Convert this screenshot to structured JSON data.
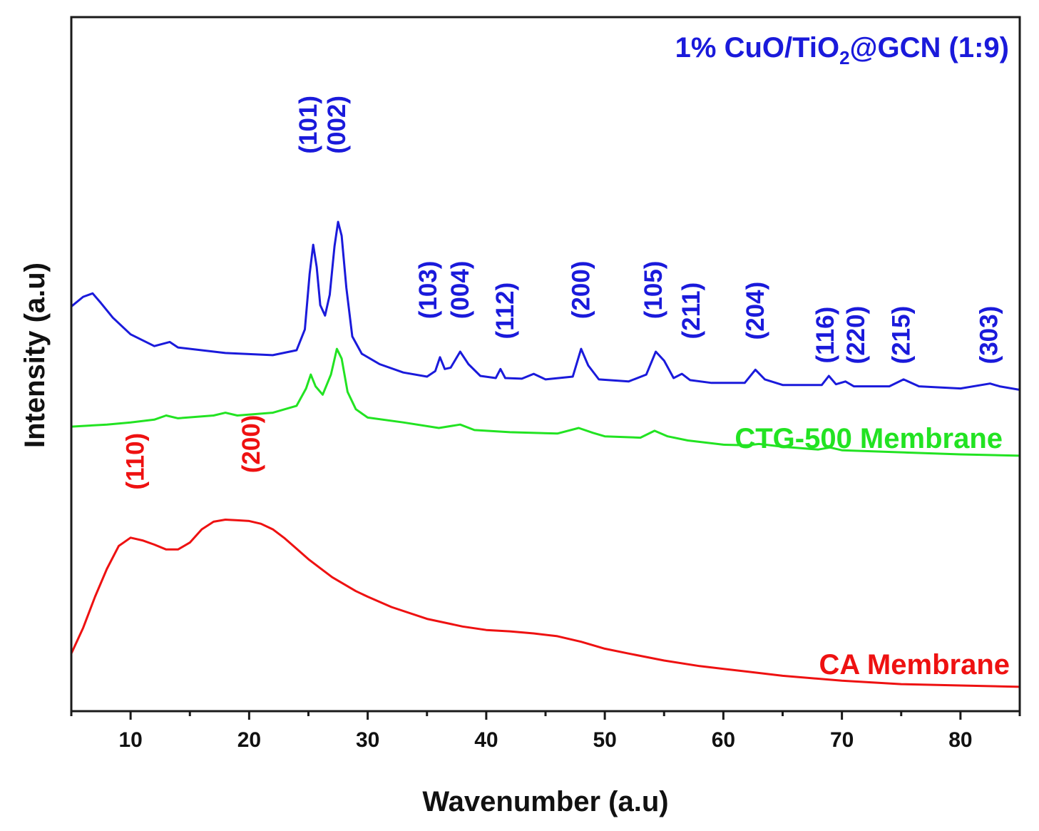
{
  "chart_data": {
    "type": "line",
    "title": "",
    "xlabel": "Wavenumber (a.u)",
    "ylabel": "Intensity (a.u)",
    "xlim": [
      5,
      85
    ],
    "ylim": [
      0,
      100
    ],
    "x_ticks": [
      10,
      20,
      30,
      40,
      50,
      60,
      70,
      80
    ],
    "y_ticks_shown": false,
    "grid": false,
    "series": [
      {
        "name": "1% CuO/TiO2@GCN (1:9)",
        "label_main": "1% CuO/TiO",
        "label_sub": "2",
        "label_tail": "@GCN (1:9)",
        "color": "#1a1adb",
        "points": [
          [
            5,
            58.3
          ],
          [
            6,
            59.7
          ],
          [
            6.8,
            60.2
          ],
          [
            7.5,
            58.8
          ],
          [
            8.5,
            56.7
          ],
          [
            10,
            54.3
          ],
          [
            12,
            52.6
          ],
          [
            13.3,
            53.2
          ],
          [
            14,
            52.4
          ],
          [
            18,
            51.6
          ],
          [
            22,
            51.3
          ],
          [
            24,
            52.0
          ],
          [
            24.7,
            55.0
          ],
          [
            25.1,
            63.0
          ],
          [
            25.4,
            67.2
          ],
          [
            25.7,
            64.0
          ],
          [
            26,
            58.5
          ],
          [
            26.4,
            57.0
          ],
          [
            26.8,
            60.0
          ],
          [
            27.2,
            67.0
          ],
          [
            27.5,
            70.5
          ],
          [
            27.8,
            68.5
          ],
          [
            28.2,
            61.0
          ],
          [
            28.7,
            54.0
          ],
          [
            29.5,
            51.5
          ],
          [
            31,
            50.0
          ],
          [
            33,
            48.8
          ],
          [
            35,
            48.2
          ],
          [
            35.7,
            49.0
          ],
          [
            36.1,
            51.0
          ],
          [
            36.5,
            49.3
          ],
          [
            37,
            49.5
          ],
          [
            37.8,
            51.8
          ],
          [
            38.5,
            50.0
          ],
          [
            39.5,
            48.3
          ],
          [
            40.8,
            48.0
          ],
          [
            41.2,
            49.3
          ],
          [
            41.6,
            48.0
          ],
          [
            43,
            47.9
          ],
          [
            44,
            48.6
          ],
          [
            45,
            47.8
          ],
          [
            47.3,
            48.2
          ],
          [
            48,
            52.2
          ],
          [
            48.6,
            49.8
          ],
          [
            49.5,
            47.8
          ],
          [
            52,
            47.5
          ],
          [
            53.5,
            48.5
          ],
          [
            54.3,
            51.8
          ],
          [
            55,
            50.5
          ],
          [
            55.8,
            48.0
          ],
          [
            56.5,
            48.6
          ],
          [
            57.2,
            47.7
          ],
          [
            59,
            47.3
          ],
          [
            61.8,
            47.3
          ],
          [
            62.7,
            49.2
          ],
          [
            63.5,
            47.8
          ],
          [
            65,
            47.0
          ],
          [
            68.3,
            47.0
          ],
          [
            68.9,
            48.3
          ],
          [
            69.5,
            47.1
          ],
          [
            70.3,
            47.5
          ],
          [
            71,
            46.8
          ],
          [
            74,
            46.8
          ],
          [
            75.2,
            47.8
          ],
          [
            76.5,
            46.8
          ],
          [
            80,
            46.5
          ],
          [
            82.5,
            47.2
          ],
          [
            83.3,
            46.8
          ],
          [
            85,
            46.3
          ]
        ]
      },
      {
        "name": "CTG-500 Membrane",
        "color": "#22e322",
        "points": [
          [
            5,
            41.0
          ],
          [
            8,
            41.3
          ],
          [
            10,
            41.6
          ],
          [
            12,
            42.0
          ],
          [
            13,
            42.6
          ],
          [
            14,
            42.2
          ],
          [
            17,
            42.6
          ],
          [
            18,
            43.0
          ],
          [
            19,
            42.6
          ],
          [
            22,
            43.0
          ],
          [
            24,
            44.0
          ],
          [
            24.8,
            46.5
          ],
          [
            25.2,
            48.5
          ],
          [
            25.6,
            46.8
          ],
          [
            26.2,
            45.6
          ],
          [
            26.9,
            48.5
          ],
          [
            27.4,
            52.2
          ],
          [
            27.8,
            50.8
          ],
          [
            28.3,
            46.0
          ],
          [
            29,
            43.5
          ],
          [
            30,
            42.3
          ],
          [
            33,
            41.6
          ],
          [
            36,
            40.8
          ],
          [
            37.8,
            41.3
          ],
          [
            39,
            40.5
          ],
          [
            42,
            40.2
          ],
          [
            46,
            40.0
          ],
          [
            47.8,
            40.8
          ],
          [
            49,
            40.1
          ],
          [
            50,
            39.6
          ],
          [
            53,
            39.4
          ],
          [
            54.2,
            40.4
          ],
          [
            55.3,
            39.6
          ],
          [
            57,
            39.0
          ],
          [
            60,
            38.4
          ],
          [
            62,
            38.3
          ],
          [
            63,
            38.5
          ],
          [
            65,
            38.1
          ],
          [
            68,
            37.7
          ],
          [
            69,
            38.0
          ],
          [
            70,
            37.6
          ],
          [
            75,
            37.3
          ],
          [
            80,
            37.0
          ],
          [
            85,
            36.8
          ]
        ]
      },
      {
        "name": "CA Membrane",
        "color": "#ee1111",
        "points": [
          [
            5,
            8.3
          ],
          [
            6,
            12.0
          ],
          [
            7,
            16.5
          ],
          [
            8,
            20.5
          ],
          [
            9,
            23.8
          ],
          [
            10,
            25.0
          ],
          [
            11,
            24.6
          ],
          [
            12,
            24.0
          ],
          [
            13,
            23.3
          ],
          [
            14,
            23.3
          ],
          [
            15,
            24.3
          ],
          [
            16,
            26.2
          ],
          [
            17,
            27.3
          ],
          [
            18,
            27.6
          ],
          [
            19,
            27.5
          ],
          [
            20,
            27.4
          ],
          [
            21,
            27.0
          ],
          [
            22,
            26.2
          ],
          [
            23,
            24.9
          ],
          [
            24,
            23.4
          ],
          [
            25,
            21.9
          ],
          [
            26,
            20.6
          ],
          [
            27,
            19.3
          ],
          [
            28,
            18.3
          ],
          [
            29,
            17.3
          ],
          [
            30,
            16.5
          ],
          [
            32,
            15.0
          ],
          [
            35,
            13.3
          ],
          [
            38,
            12.2
          ],
          [
            40,
            11.7
          ],
          [
            42,
            11.5
          ],
          [
            44,
            11.2
          ],
          [
            46,
            10.8
          ],
          [
            48,
            10.0
          ],
          [
            50,
            9.0
          ],
          [
            52,
            8.3
          ],
          [
            55,
            7.3
          ],
          [
            58,
            6.5
          ],
          [
            62,
            5.7
          ],
          [
            65,
            5.1
          ],
          [
            70,
            4.4
          ],
          [
            75,
            3.9
          ],
          [
            80,
            3.7
          ],
          [
            85,
            3.5
          ]
        ]
      }
    ],
    "peak_labels": [
      {
        "text": "(101)",
        "x": 25.0,
        "y": 84.5,
        "color": "#1a1adb"
      },
      {
        "text": "(002)",
        "x": 27.4,
        "y": 84.5,
        "color": "#1a1adb"
      },
      {
        "text": "(103)",
        "x": 35.1,
        "y": 60.7,
        "color": "#1a1adb"
      },
      {
        "text": "(004)",
        "x": 37.8,
        "y": 60.7,
        "color": "#1a1adb"
      },
      {
        "text": "(112)",
        "x": 41.6,
        "y": 57.7,
        "color": "#1a1adb"
      },
      {
        "text": "(200)",
        "x": 48.0,
        "y": 60.7,
        "color": "#1a1adb"
      },
      {
        "text": "(105)",
        "x": 54.1,
        "y": 60.7,
        "color": "#1a1adb"
      },
      {
        "text": "(211)",
        "x": 57.3,
        "y": 57.7,
        "color": "#1a1adb"
      },
      {
        "text": "(204)",
        "x": 62.7,
        "y": 57.7,
        "color": "#1a1adb"
      },
      {
        "text": "(116)",
        "x": 68.6,
        "y": 54.2,
        "color": "#1a1adb"
      },
      {
        "text": "(220)",
        "x": 71.2,
        "y": 54.2,
        "color": "#1a1adb"
      },
      {
        "text": "(215)",
        "x": 75.0,
        "y": 54.2,
        "color": "#1a1adb"
      },
      {
        "text": "(303)",
        "x": 82.4,
        "y": 54.2,
        "color": "#1a1adb"
      },
      {
        "text": "(110)",
        "x": 10.4,
        "y": 36.0,
        "color": "#ee1111"
      },
      {
        "text": "(200)",
        "x": 20.2,
        "y": 38.5,
        "color": "#ee1111"
      }
    ]
  }
}
